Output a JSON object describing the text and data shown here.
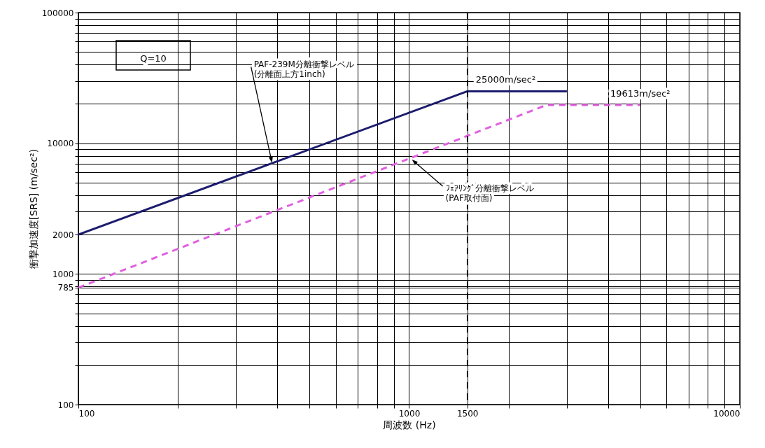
{
  "chart_data": {
    "type": "line",
    "xlabel": "周波数 (Hz)",
    "ylabel": "衝撃加速度[SRS] (m/sec²)",
    "log": "xy",
    "grid": true,
    "xlim": [
      100,
      10000
    ],
    "ylim": [
      100,
      100000
    ],
    "xticks": [
      100,
      {
        "value": 200,
        "label": null
      },
      {
        "value": 300,
        "label": null
      },
      {
        "value": 400,
        "label": null
      },
      {
        "value": 500,
        "label": null
      },
      {
        "value": 600,
        "label": null
      },
      {
        "value": 700,
        "label": null
      },
      {
        "value": 800,
        "label": null
      },
      {
        "value": 900,
        "label": null
      },
      1000,
      1500,
      {
        "value": 2000,
        "label": null
      },
      {
        "value": 3000,
        "label": null
      },
      {
        "value": 4000,
        "label": null
      },
      {
        "value": 5000,
        "label": null
      },
      {
        "value": 6000,
        "label": null
      },
      {
        "value": 7000,
        "label": null
      },
      {
        "value": 8000,
        "label": null
      },
      {
        "value": 9000,
        "label": null
      },
      10000
    ],
    "yticks": [
      100,
      {
        "value": 200,
        "label": null
      },
      {
        "value": 300,
        "label": null
      },
      {
        "value": 400,
        "label": null
      },
      {
        "value": 500,
        "label": null
      },
      {
        "value": 600,
        "label": null
      },
      {
        "value": 700,
        "label": null
      },
      785,
      {
        "value": 800,
        "label": null
      },
      {
        "value": 900,
        "label": null
      },
      1000,
      2000,
      {
        "value": 3000,
        "label": null
      },
      {
        "value": 4000,
        "label": null
      },
      {
        "value": 5000,
        "label": null
      },
      {
        "value": 6000,
        "label": null
      },
      {
        "value": 7000,
        "label": null
      },
      {
        "value": 8000,
        "label": null
      },
      {
        "value": 9000,
        "label": null
      },
      10000,
      {
        "value": 20000,
        "label": null
      },
      {
        "value": 30000,
        "label": null
      },
      {
        "value": 40000,
        "label": null
      },
      {
        "value": 50000,
        "label": null
      },
      {
        "value": 60000,
        "label": null
      },
      {
        "value": 70000,
        "label": null
      },
      {
        "value": 80000,
        "label": null
      },
      {
        "value": 90000,
        "label": null
      },
      100000
    ],
    "series": [
      {
        "color": "#1c1c6e",
        "x": [
          100,
          1500,
          3000
        ],
        "values": [
          2000,
          25000,
          25000
        ],
        "line_style": "solid",
        "value_labels": [
          null,
          "25000m/sec²",
          null
        ]
      },
      {
        "color": "#e060e0",
        "x": [
          100,
          2600,
          5000
        ],
        "values": [
          785,
          19613,
          19613
        ],
        "line_style": "dashed",
        "value_labels": [
          null,
          null,
          "19613m/sec²"
        ]
      }
    ],
    "ref_lines": [
      {
        "axis": "x",
        "value": 1500,
        "line_style": "dashed",
        "color": "#000000"
      }
    ],
    "annotations": [
      "Q=10",
      {
        "text": "PAF-239M分離衝撃レベル\n(分離面上方1inch)",
        "x": 385,
        "y": 7100
      },
      {
        "text": "ﾌｪｱﾘﾝｸﾞ分離衝撃レベル\n(PAF取付面)",
        "x": 1020,
        "y": 7500
      }
    ]
  }
}
